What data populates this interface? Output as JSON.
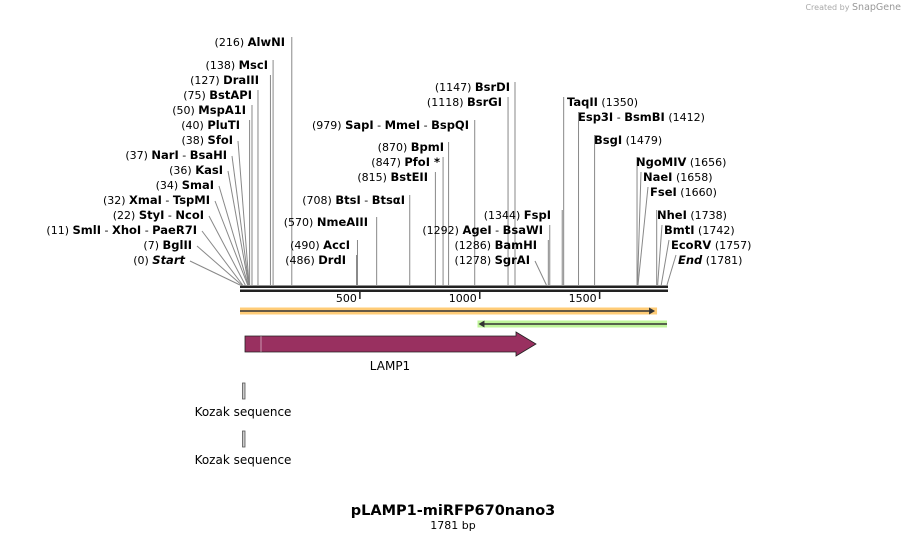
{
  "credit": {
    "prefix": "Created by",
    "brand": "SnapGene"
  },
  "plasmid": {
    "name": "pLAMP1-miRFP670nano3",
    "length_label": "1781 bp",
    "length": 1781
  },
  "ruler": {
    "ticks": [
      500,
      1000,
      1500
    ]
  },
  "sites": [
    {
      "bp": 216,
      "names": [
        "AlwNI"
      ]
    },
    {
      "bp": 138,
      "names": [
        "MscI"
      ]
    },
    {
      "bp": 127,
      "names": [
        "DraIII"
      ]
    },
    {
      "bp": 75,
      "names": [
        "BstAPI"
      ]
    },
    {
      "bp": 50,
      "names": [
        "MspA1I"
      ]
    },
    {
      "bp": 40,
      "names": [
        "PluTI"
      ]
    },
    {
      "bp": 38,
      "names": [
        "SfoI"
      ]
    },
    {
      "bp": 37,
      "names": [
        "NarI",
        "BsaHI"
      ]
    },
    {
      "bp": 36,
      "names": [
        "KasI"
      ]
    },
    {
      "bp": 34,
      "names": [
        "SmaI"
      ]
    },
    {
      "bp": 32,
      "names": [
        "XmaI",
        "TspMI"
      ]
    },
    {
      "bp": 22,
      "names": [
        "StyI",
        "NcoI"
      ]
    },
    {
      "bp": 11,
      "names": [
        "SmlI",
        "XhoI",
        "PaeR7I"
      ]
    },
    {
      "bp": 7,
      "names": [
        "BglII"
      ]
    },
    {
      "bp": 0,
      "names": [
        "Start"
      ],
      "italic": true
    },
    {
      "bp": 979,
      "names": [
        "SapI",
        "MmeI",
        "BspQI"
      ]
    },
    {
      "bp": 870,
      "names": [
        "BpmI"
      ]
    },
    {
      "bp": 847,
      "names": [
        "PfoI *"
      ]
    },
    {
      "bp": 815,
      "names": [
        "BstEII"
      ]
    },
    {
      "bp": 708,
      "names": [
        "BtsI",
        "BtsαI"
      ]
    },
    {
      "bp": 570,
      "names": [
        "NmeAIII"
      ]
    },
    {
      "bp": 490,
      "names": [
        "AccI"
      ]
    },
    {
      "bp": 486,
      "names": [
        "DrdI"
      ]
    },
    {
      "bp": 1147,
      "names": [
        "BsrDI"
      ]
    },
    {
      "bp": 1118,
      "names": [
        "BsrGI"
      ]
    },
    {
      "bp": 1292,
      "names": [
        "AgeI",
        "BsaWI"
      ]
    },
    {
      "bp": 1286,
      "names": [
        "BamHI"
      ]
    },
    {
      "bp": 1278,
      "names": [
        "SgrAI"
      ]
    },
    {
      "bp": 1344,
      "names": [
        "FspI"
      ]
    },
    {
      "bp": 1350,
      "names": [
        "TaqII"
      ]
    },
    {
      "bp": 1412,
      "names": [
        "Esp3I",
        "BsmBI"
      ]
    },
    {
      "bp": 1479,
      "names": [
        "BsgI"
      ]
    },
    {
      "bp": 1656,
      "names": [
        "NgoMIV"
      ]
    },
    {
      "bp": 1658,
      "names": [
        "NaeI"
      ]
    },
    {
      "bp": 1660,
      "names": [
        "FseI"
      ]
    },
    {
      "bp": 1738,
      "names": [
        "NheI"
      ]
    },
    {
      "bp": 1742,
      "names": [
        "BmtI"
      ]
    },
    {
      "bp": 1757,
      "names": [
        "EcoRV"
      ]
    },
    {
      "bp": 1781,
      "names": [
        "End"
      ],
      "italic": true
    }
  ],
  "features": [
    {
      "name": "",
      "start": 1,
      "end": 1727,
      "direction": "forward",
      "color": "#ffcc77"
    },
    {
      "name": "",
      "start": 1003,
      "end": 1781,
      "direction": "reverse",
      "color": "#bff59a"
    },
    {
      "name": "LAMP1",
      "start": 22,
      "end": 1239,
      "direction": "forward",
      "color": "#993060"
    },
    {
      "name": "Kozak sequence",
      "start": 11,
      "end": 20,
      "direction": "none",
      "color": "#cccccc"
    },
    {
      "name": "Kozak sequence",
      "start": 11,
      "end": 20,
      "direction": "none",
      "color": "#cccccc"
    }
  ]
}
